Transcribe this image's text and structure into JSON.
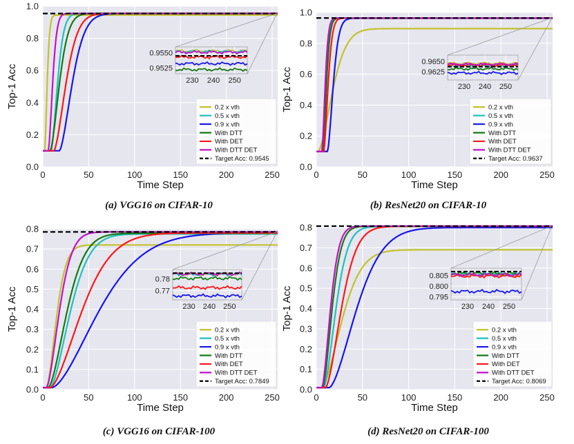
{
  "colors": {
    "plot_bg": "#e6e6ef",
    "grid": "#ffffff",
    "s1": "#c2c22a",
    "s2": "#20bfc0",
    "s3": "#1515ee",
    "s4": "#127a12",
    "s5": "#ff1515",
    "s6": "#c011c8",
    "target": "#000000"
  },
  "chart_data": [
    {
      "id": "a",
      "type": "line",
      "caption": "(a) VGG16 on CIFAR-10",
      "xlabel": "Time Step",
      "ylabel": "Top-1 Acc",
      "xlim": [
        0,
        256
      ],
      "ylim": [
        0.0,
        1.0
      ],
      "xticks": [
        "0",
        "50",
        "100",
        "150",
        "200",
        "250"
      ],
      "yticks": [
        "0.0",
        "0.2",
        "0.4",
        "0.6",
        "0.8",
        "1.0"
      ],
      "target_value": 0.9545,
      "series": [
        {
          "name": "0.2 x vth",
          "start": 0.1,
          "final": 0.945,
          "delay": 2,
          "tau": 3.5
        },
        {
          "name": "0.5 x vth",
          "start": 0.1,
          "final": 0.955,
          "delay": 9,
          "tau": 9
        },
        {
          "name": "0.9 x vth",
          "start": 0.1,
          "final": 0.954,
          "delay": 18,
          "tau": 18
        },
        {
          "name": "With DTT",
          "start": 0.1,
          "final": 0.955,
          "delay": 8,
          "tau": 13
        },
        {
          "name": "With DET",
          "start": 0.1,
          "final": 0.955,
          "delay": 12,
          "tau": 17
        },
        {
          "name": "With DTT DET",
          "start": 0.1,
          "final": 0.955,
          "delay": 6,
          "tau": 6
        }
      ],
      "inset": {
        "xticks": [
          "230",
          "240",
          "250"
        ],
        "yticks": [
          "0.9550",
          "0.9525"
        ],
        "xlim": [
          222,
          256
        ],
        "ylim": [
          0.9515,
          0.956
        ],
        "levels": [
          0.9553,
          0.9552,
          0.9532,
          0.9522,
          0.9543,
          0.9551
        ]
      },
      "legend": {
        "entries": [
          "0.2 x vth",
          "0.5 x vth",
          "0.9 x vth",
          "With DTT",
          "With DET",
          "With DTT DET"
        ],
        "target_label": "Target Acc: 0.9545"
      }
    },
    {
      "id": "b",
      "type": "line",
      "caption": "(b) ResNet20 on CIFAR-10",
      "xlabel": "Time Step",
      "ylabel": "Top-1 Acc",
      "xlim": [
        0,
        256
      ],
      "ylim": [
        0.0,
        1.0
      ],
      "xticks": [
        "0",
        "50",
        "100",
        "150",
        "200",
        "250"
      ],
      "yticks": [
        "0.0",
        "0.2",
        "0.4",
        "0.6",
        "0.8",
        "1.0"
      ],
      "target_value": 0.9637,
      "series": [
        {
          "name": "0.2 x vth",
          "start": 0.1,
          "final": 0.895,
          "delay": 2,
          "tau": 20
        },
        {
          "name": "0.5 x vth",
          "start": 0.1,
          "final": 0.963,
          "delay": 6,
          "tau": 5
        },
        {
          "name": "0.9 x vth",
          "start": 0.1,
          "final": 0.962,
          "delay": 12,
          "tau": 8
        },
        {
          "name": "With DTT",
          "start": 0.1,
          "final": 0.963,
          "delay": 7,
          "tau": 5
        },
        {
          "name": "With DET",
          "start": 0.1,
          "final": 0.963,
          "delay": 8,
          "tau": 6
        },
        {
          "name": "With DTT DET",
          "start": 0.1,
          "final": 0.964,
          "delay": 6,
          "tau": 4.5
        }
      ],
      "inset": {
        "xticks": [
          "230",
          "240",
          "250"
        ],
        "yticks": [
          "0.9650",
          "0.9625"
        ],
        "xlim": [
          222,
          256
        ],
        "ylim": [
          0.9605,
          0.9665
        ],
        "levels": [
          0.9645,
          0.964,
          0.9622,
          0.9632,
          0.9641,
          0.9643
        ]
      },
      "legend": {
        "entries": [
          "0.2 x vth",
          "0.5 x vth",
          "0.9 x vth",
          "With DTT",
          "With DET",
          "With DTT DET"
        ],
        "target_label": "Target Acc: 0.9637"
      }
    },
    {
      "id": "c",
      "type": "line",
      "caption": "(c) VGG16 on CIFAR-100",
      "xlabel": "Time Step",
      "ylabel": "Top-1 Acc",
      "xlim": [
        0,
        256
      ],
      "ylim": [
        0.0,
        0.8
      ],
      "xticks": [
        "0",
        "50",
        "100",
        "150",
        "200",
        "250"
      ],
      "yticks": [
        "0.0",
        "0.1",
        "0.2",
        "0.3",
        "0.4",
        "0.5",
        "0.6",
        "0.7",
        "0.8"
      ],
      "target_value": 0.7849,
      "series": [
        {
          "name": "0.2 x vth",
          "start": 0.01,
          "final": 0.72,
          "delay": 4,
          "tau": 14
        },
        {
          "name": "0.5 x vth",
          "start": 0.01,
          "final": 0.775,
          "delay": 8,
          "tau": 28
        },
        {
          "name": "0.9 x vth",
          "start": 0.01,
          "final": 0.78,
          "delay": 10,
          "tau": 65
        },
        {
          "name": "With DTT",
          "start": 0.01,
          "final": 0.778,
          "delay": 6,
          "tau": 26
        },
        {
          "name": "With DET",
          "start": 0.01,
          "final": 0.78,
          "delay": 8,
          "tau": 44
        },
        {
          "name": "With DTT DET",
          "start": 0.01,
          "final": 0.785,
          "delay": 4,
          "tau": 18
        }
      ],
      "inset": {
        "xticks": [
          "230",
          "240",
          "250"
        ],
        "yticks": [
          "0.78",
          "0.77"
        ],
        "xlim": [
          222,
          256
        ],
        "ylim": [
          0.762,
          0.788
        ],
        "levels": [
          0.7842,
          0.784,
          0.7655,
          0.7805,
          0.7725,
          0.7843
        ]
      },
      "legend": {
        "entries": [
          "0.2 x vth",
          "0.5 x vth",
          "0.9 x vth",
          "With DTT",
          "With DET",
          "With DTT DET"
        ],
        "target_label": "Target Acc: 0.7849"
      }
    },
    {
      "id": "d",
      "type": "line",
      "caption": "(d) ResNet20 on CIFAR-100",
      "xlabel": "Time Step",
      "ylabel": "Top-1 Acc",
      "xlim": [
        0,
        256
      ],
      "ylim": [
        0.0,
        0.8
      ],
      "xticks": [
        "0",
        "50",
        "100",
        "150",
        "200",
        "250"
      ],
      "yticks": [
        "0.0",
        "0.1",
        "0.2",
        "0.3",
        "0.4",
        "0.5",
        "0.6",
        "0.7",
        "0.8"
      ],
      "target_value": 0.8069,
      "series": [
        {
          "name": "0.2 x vth",
          "start": 0.01,
          "final": 0.69,
          "delay": 6,
          "tau": 28
        },
        {
          "name": "0.5 x vth",
          "start": 0.01,
          "final": 0.805,
          "delay": 8,
          "tau": 17
        },
        {
          "name": "0.9 x vth",
          "start": 0.01,
          "final": 0.8,
          "delay": 14,
          "tau": 38
        },
        {
          "name": "With DTT",
          "start": 0.01,
          "final": 0.806,
          "delay": 7,
          "tau": 13
        },
        {
          "name": "With DET",
          "start": 0.01,
          "final": 0.806,
          "delay": 10,
          "tau": 22
        },
        {
          "name": "With DTT DET",
          "start": 0.01,
          "final": 0.807,
          "delay": 6,
          "tau": 12
        }
      ],
      "inset": {
        "xticks": [
          "230",
          "240",
          "250"
        ],
        "yticks": [
          "0.805",
          "0.800",
          "0.795"
        ],
        "xlim": [
          222,
          256
        ],
        "ylim": [
          0.7935,
          0.8085
        ],
        "levels": [
          0.8052,
          0.8058,
          0.7975,
          0.806,
          0.8048,
          0.8054
        ]
      },
      "legend": {
        "entries": [
          "0.2 x vth",
          "0.5 x vth",
          "0.9 x vth",
          "With DTT",
          "With DET",
          "With DTT DET"
        ],
        "target_label": "Target Acc: 0.8069"
      }
    }
  ]
}
